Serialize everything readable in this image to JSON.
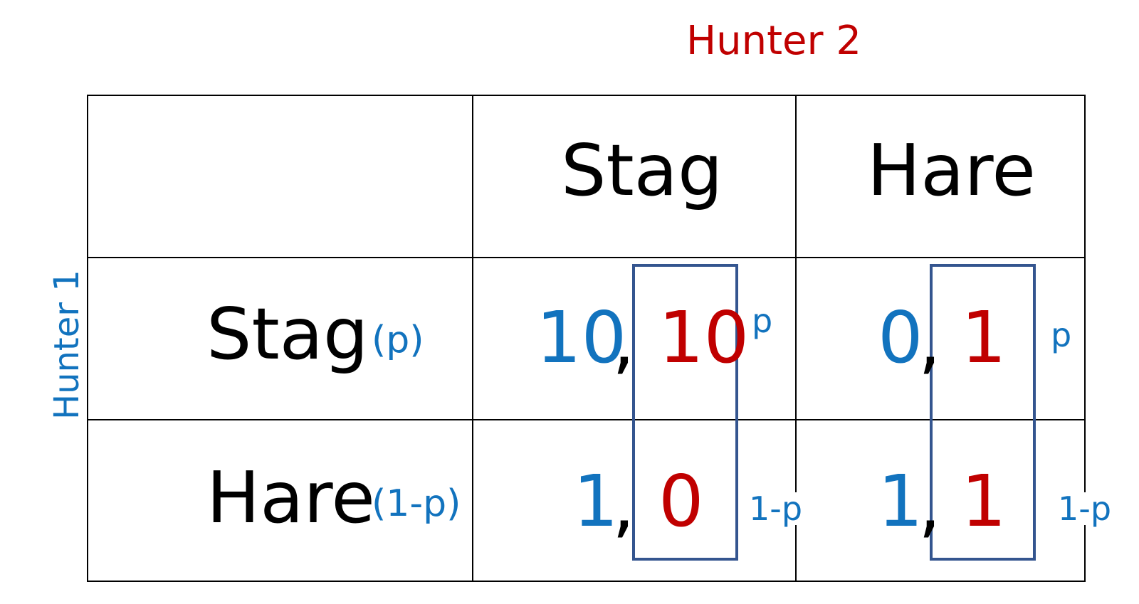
{
  "player_column": "Hunter 2",
  "player_row": "Hunter 1",
  "columns": [
    {
      "label": "Stag",
      "prob": "p"
    },
    {
      "label": "Hare",
      "prob": "1-p"
    }
  ],
  "rows": [
    {
      "label": "Stag",
      "prob": "(p)"
    },
    {
      "label": "Hare",
      "prob": "(1-p)"
    }
  ],
  "payoffs": [
    [
      {
        "p1": "10",
        "p2": "10"
      },
      {
        "p1": "0",
        "p2": "1"
      }
    ],
    [
      {
        "p1": "1",
        "p2": "0"
      },
      {
        "p1": "1",
        "p2": "1"
      }
    ]
  ],
  "comma": ",",
  "colors": {
    "player1": "#1273be",
    "player2": "#c00000",
    "highlight_box": "#34558f"
  }
}
